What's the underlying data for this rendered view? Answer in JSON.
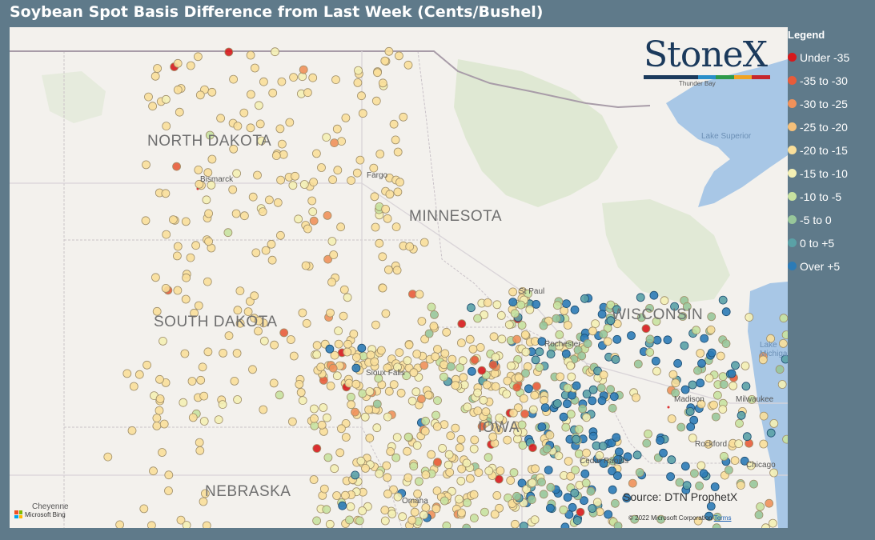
{
  "title": "Soybean Spot Basis Difference from Last Week (Cents/Bushel)",
  "legend": {
    "title": "Legend",
    "items": [
      {
        "label": "Under -35",
        "color": "#d7191c"
      },
      {
        "label": "-35 to -30",
        "color": "#e85c3a"
      },
      {
        "label": "-30 to -25",
        "color": "#f0915a"
      },
      {
        "label": "-25 to -20",
        "color": "#f5c07a"
      },
      {
        "label": "-20 to -15",
        "color": "#fadf9a"
      },
      {
        "label": "-15 to -10",
        "color": "#f4f0b4"
      },
      {
        "label": "-10 to -5",
        "color": "#c8e2a0"
      },
      {
        "label": "-5 to 0",
        "color": "#98c79a"
      },
      {
        "label": "0 to +5",
        "color": "#5aa1a6"
      },
      {
        "label": "Over +5",
        "color": "#2c7bb6"
      }
    ]
  },
  "logo": {
    "text": "StoneX"
  },
  "states": {
    "nd": "NORTH DAKOTA",
    "sd": "SOUTH DAKOTA",
    "mn": "MINNESOTA",
    "wi": "WISCONSIN",
    "ne": "NEBRASKA",
    "ia": "IOWA"
  },
  "cities": {
    "bismarck": "Bismarck",
    "fargo": "Fargo",
    "stpaul": "St Paul",
    "rochester": "Rochester",
    "madison": "Madison",
    "milwaukee": "Milwaukee",
    "rockford": "Rockford",
    "chicago": "Chicago",
    "cedar": "Cedar Rapids",
    "omaha": "Omaha",
    "cheyenne": "Cheyenne",
    "siouxfalls": "Sioux Falls",
    "thunderbay": "Thunder Bay"
  },
  "water": {
    "superior": "Lake Superior",
    "michigan": "Lake Michigan"
  },
  "source": "Source: DTN ProphetX",
  "copyright": "© 2022 Microsoft Corporation",
  "terms": "Terms",
  "bing": "Microsoft Bing"
}
